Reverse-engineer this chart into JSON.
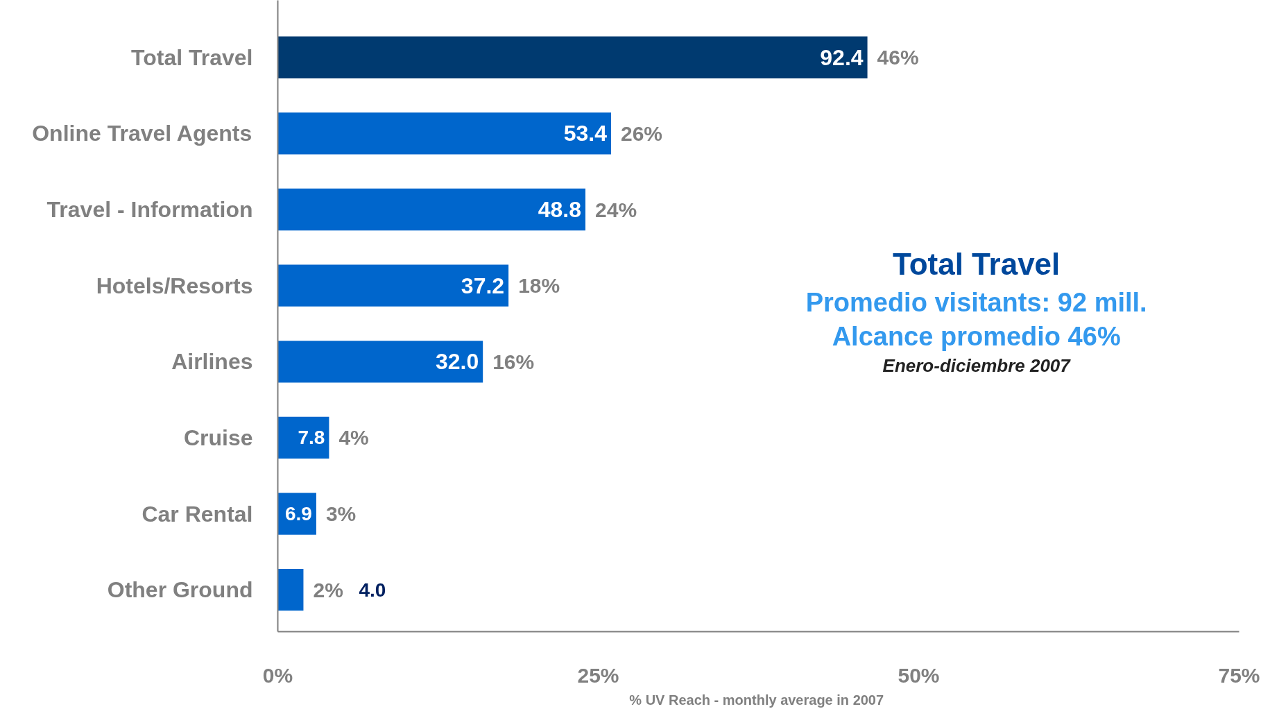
{
  "chart_data": {
    "type": "bar",
    "orientation": "horizontal",
    "xlabel": "% UV Reach  - monthly average in 2007",
    "categories": [
      "Total Travel",
      "Online Travel Agents",
      "Travel - Information",
      "Hotels/Resorts",
      "Airlines",
      "Cruise",
      "Car Rental",
      "Other Ground"
    ],
    "values": [
      46,
      26,
      24,
      18,
      16,
      4,
      3,
      2
    ],
    "colors": [
      "#003a70",
      "#0066cc",
      "#0066cc",
      "#0066cc",
      "#0066cc",
      "#0066cc",
      "#0066cc",
      "#0066cc"
    ],
    "value_labels": [
      "46%",
      "26%",
      "24%",
      "18%",
      "16%",
      "4%",
      "3%",
      "2%"
    ],
    "xlim": [
      0,
      75
    ],
    "xticks": [
      {
        "value": 0,
        "label": "0%"
      },
      {
        "value": 25,
        "label": "25%"
      },
      {
        "value": 50,
        "label": "50%"
      },
      {
        "value": 75,
        "label": "75%"
      }
    ],
    "grid": false,
    "annotations": [
      {
        "text": "92.4",
        "x": 46,
        "y": "Total Travel"
      },
      {
        "text": "53.4",
        "x": 26,
        "y": "Online Travel Agents"
      },
      {
        "text": "48.8",
        "x": 24,
        "y": "Travel - Information"
      },
      {
        "text": "37.2",
        "x": 18,
        "y": "Hotels/Resorts"
      },
      {
        "text": "32.0",
        "x": 16,
        "y": "Airlines"
      },
      {
        "text": "7.8",
        "x": 4,
        "y": "Cruise"
      },
      {
        "text": "6.9",
        "x": 3,
        "y": "Car Rental"
      },
      {
        "text": "4.0",
        "x": 2,
        "y": "Other Ground"
      },
      "Total Travel",
      "Promedio visitants: 92 mill.",
      "Alcance promedio 46%",
      "Enero-diciembre 2007"
    ]
  }
}
